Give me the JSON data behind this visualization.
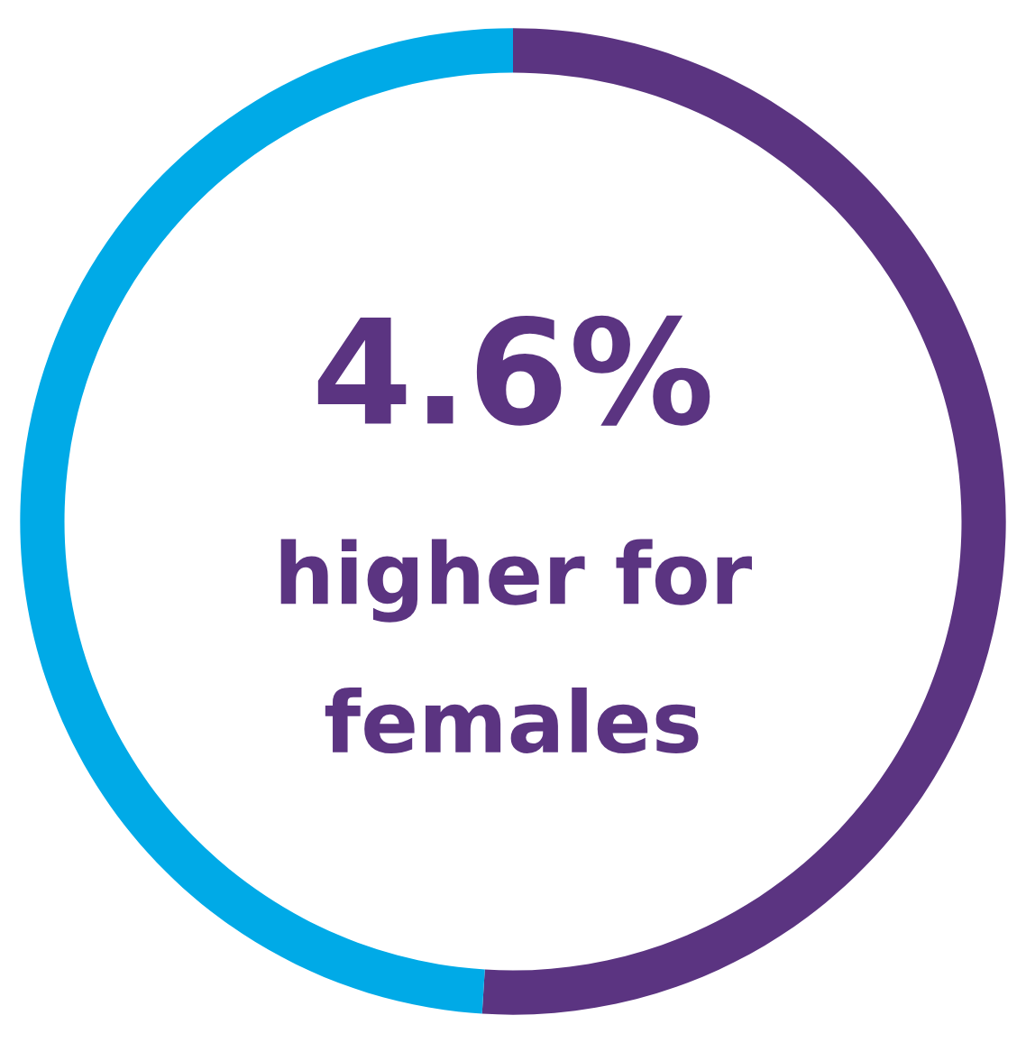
{
  "chart_data": {
    "type": "donut",
    "categories": [
      null,
      null
    ],
    "values": [
      51,
      49
    ],
    "colors": [
      "#5b3481",
      "#00aae7"
    ],
    "annotations": [
      "4.6%",
      "higher for",
      "females"
    ]
  }
}
